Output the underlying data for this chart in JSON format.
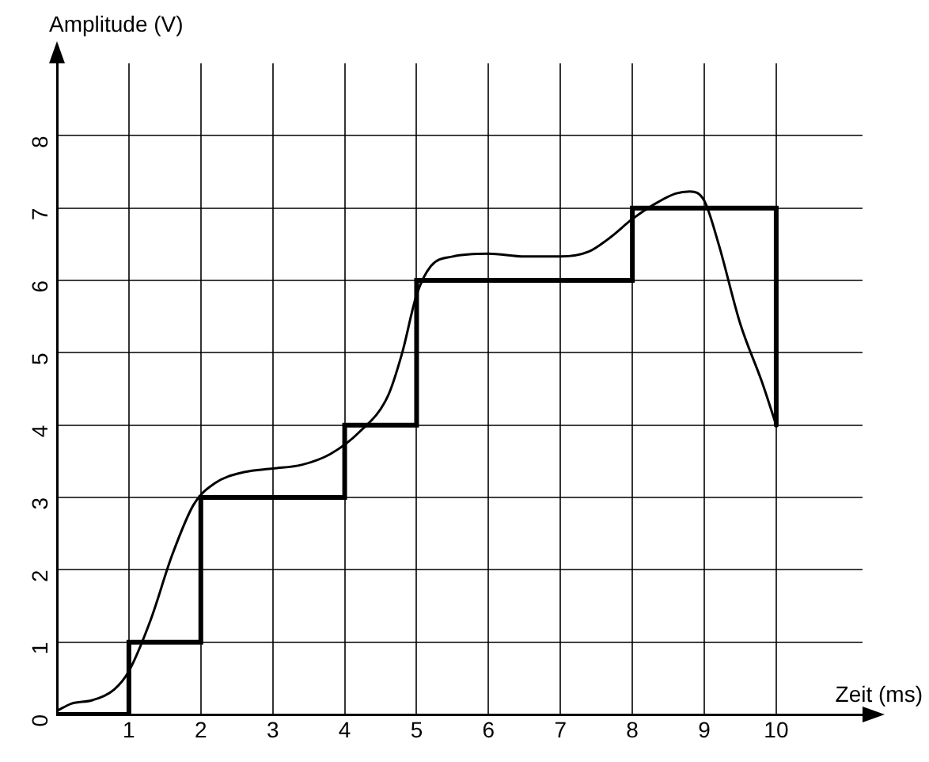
{
  "chart_data": {
    "type": "line",
    "xlabel": "Zeit (ms)",
    "ylabel": "Amplitude (V)",
    "xlim": [
      0,
      11.2
    ],
    "ylim": [
      0,
      9
    ],
    "xticks": [
      {
        "value": 0,
        "label": null
      },
      1,
      2,
      3,
      4,
      5,
      6,
      7,
      8,
      9,
      10
    ],
    "yticks": [
      0,
      1,
      2,
      3,
      4,
      5,
      6,
      7,
      8
    ],
    "grid": true,
    "legend": false,
    "marker": "none",
    "line_style": "solid",
    "series": [
      {
        "type": "step",
        "color": "#000000",
        "x": [
          0,
          1,
          2,
          4,
          5,
          8,
          10,
          10
        ],
        "values": [
          0,
          1,
          3,
          4,
          6,
          7,
          7,
          4
        ]
      },
      {
        "type": "line",
        "color": "#000000",
        "x": [
          0,
          0.2,
          0.5,
          0.8,
          1,
          1.3,
          1.6,
          1.9,
          2.2,
          2.6,
          3,
          3.4,
          3.8,
          4.2,
          4.6,
          4.8,
          5,
          5.2,
          5.5,
          6,
          6.5,
          7,
          7.4,
          7.7,
          8,
          8.3,
          8.6,
          8.8,
          9,
          9.2,
          9.5,
          9.8,
          10
        ],
        "values": [
          0.05,
          0.15,
          0.2,
          0.35,
          0.6,
          1.3,
          2.2,
          2.9,
          3.2,
          3.35,
          3.4,
          3.45,
          3.6,
          3.9,
          4.4,
          5,
          5.8,
          6.2,
          6.33,
          6.37,
          6.33,
          6.33,
          6.4,
          6.6,
          6.85,
          7.05,
          7.2,
          7.23,
          7.1,
          6.5,
          5.4,
          4.6,
          4
        ]
      }
    ]
  }
}
